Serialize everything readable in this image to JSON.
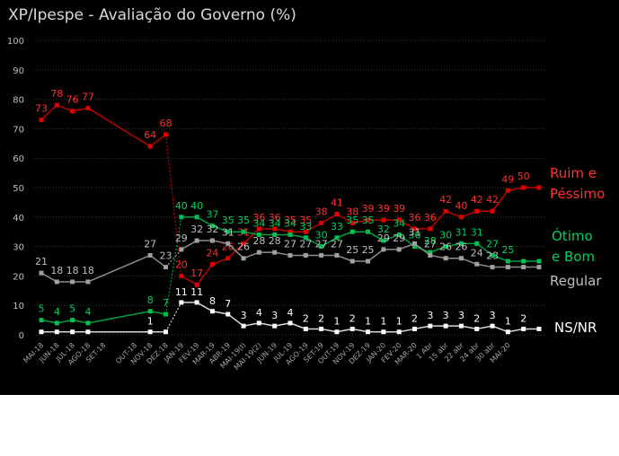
{
  "chart_data": {
    "type": "line",
    "title": "XP/Ipespe - Avaliação do Governo (%)",
    "ylim": [
      0,
      100
    ],
    "yticks": [
      "0",
      "10",
      "20",
      "30",
      "40",
      "50",
      "60",
      "70",
      "80",
      "90",
      "100"
    ],
    "grid": true,
    "categories": [
      "MAI-18",
      "JUN-18",
      "JUL-18",
      "AGO-18",
      "SET-18",
      "OUT-18",
      "NOV-18",
      "DEZ-18",
      "JAN-19",
      "FEV-19",
      "MAR-19",
      "ABR-19",
      "MAI-19(I)",
      "MAI-19(2)",
      "JUN-19",
      "JUL-19",
      "AGO-19",
      "SET-19",
      "OUT-19",
      "NOV-19",
      "DEZ-19",
      "JAN-20",
      "FEV-20",
      "MAR-20",
      "1 Abr",
      "15 abr",
      "22 abr",
      "24 abr",
      "30 abr",
      "MAI-20"
    ],
    "x_positions": [
      0,
      1,
      2,
      3,
      4,
      6,
      7,
      8,
      9,
      10,
      11,
      12,
      13,
      14,
      15,
      16,
      17,
      18,
      19,
      20,
      21,
      22,
      23,
      24,
      25,
      26,
      27,
      28,
      29,
      30
    ],
    "series": [
      {
        "name": "Ruim e Péssimo",
        "label_lines": [
          "Ruim e",
          "Péssimo"
        ],
        "color": "#ff0000",
        "line_color": "#c00000",
        "marker_color": "#e00000",
        "label_color": "#ff3030",
        "x": [
          0,
          1,
          2,
          3,
          7,
          8,
          9,
          10,
          11,
          12,
          13,
          14,
          15,
          16,
          17,
          18,
          19,
          20,
          21,
          22,
          23,
          24,
          25,
          26,
          27,
          28,
          29,
          30,
          31,
          32
        ],
        "values": [
          73,
          78,
          76,
          77,
          64,
          68,
          20,
          17,
          24,
          26,
          31,
          36,
          36,
          35,
          35,
          38,
          41,
          38,
          39,
          39,
          39,
          36,
          36,
          42,
          40,
          42,
          42,
          49,
          50,
          50
        ],
        "labels": [
          "73",
          "78",
          "76",
          "77",
          "64",
          "68",
          "20",
          "17",
          "24",
          "26",
          "31",
          "36",
          "36",
          "35",
          "35",
          "38",
          "41",
          "38",
          "39",
          "39",
          "39",
          "36",
          "36",
          "42",
          "40",
          "42",
          "42",
          "49",
          "50",
          ""
        ]
      },
      {
        "name": "Ótimo e Bom",
        "label_lines": [
          "Ótimo",
          "e Bom"
        ],
        "color": "#00b050",
        "line_color": "#00a040",
        "marker_color": "#00c050",
        "label_color": "#00d060",
        "x": [
          0,
          1,
          2,
          3,
          7,
          8,
          9,
          10,
          11,
          12,
          13,
          14,
          15,
          16,
          17,
          18,
          19,
          20,
          21,
          22,
          23,
          24,
          25,
          26,
          27,
          28,
          29,
          30,
          31,
          32
        ],
        "values": [
          5,
          4,
          5,
          4,
          8,
          7,
          40,
          40,
          37,
          35,
          35,
          34,
          34,
          34,
          33,
          30,
          33,
          35,
          35,
          32,
          34,
          30,
          28,
          30,
          31,
          31,
          27,
          25,
          25,
          25
        ],
        "labels": [
          "5",
          "4",
          "5",
          "4",
          "8",
          "7",
          "40",
          "40",
          "37",
          "35",
          "35",
          "34",
          "34",
          "34",
          "33",
          "30",
          "33",
          "35",
          "35",
          "32",
          "34",
          "30",
          "28",
          "30",
          "31",
          "31",
          "27",
          "25",
          "",
          ""
        ]
      },
      {
        "name": "Regular",
        "label_lines": [
          "Regular"
        ],
        "color": "#808080",
        "line_color": "#8c8c8c",
        "marker_color": "#a0a0a0",
        "label_color": "#bfbfbf",
        "x": [
          0,
          1,
          2,
          3,
          7,
          8,
          9,
          10,
          11,
          12,
          13,
          14,
          15,
          16,
          17,
          18,
          19,
          20,
          21,
          22,
          23,
          24,
          25,
          26,
          27,
          28,
          29,
          30,
          31,
          32
        ],
        "values": [
          21,
          18,
          18,
          18,
          27,
          23,
          29,
          32,
          32,
          31,
          26,
          28,
          28,
          27,
          27,
          27,
          27,
          25,
          25,
          29,
          29,
          31,
          27,
          26,
          26,
          24,
          23,
          23,
          23,
          23
        ],
        "labels": [
          "21",
          "18",
          "18",
          "18",
          "27",
          "23",
          "29",
          "32",
          "32",
          "31",
          "26",
          "28",
          "28",
          "27",
          "27",
          "27",
          "27",
          "25",
          "25",
          "29",
          "29",
          "31",
          "27",
          "26",
          "26",
          "24",
          "23",
          "",
          "",
          ""
        ]
      },
      {
        "name": "NS/NR",
        "label_lines": [
          "NS/NR"
        ],
        "color": "#ffffff",
        "line_color": "#d9d9d9",
        "marker_color": "#ffffff",
        "label_color": "#ffffff",
        "x": [
          0,
          1,
          2,
          3,
          7,
          8,
          9,
          10,
          11,
          12,
          13,
          14,
          15,
          16,
          17,
          18,
          19,
          20,
          21,
          22,
          23,
          24,
          25,
          26,
          27,
          28,
          29,
          30,
          31,
          32
        ],
        "values": [
          1,
          1,
          1,
          1,
          1,
          1,
          11,
          11,
          8,
          7,
          3,
          4,
          3,
          4,
          2,
          2,
          1,
          2,
          1,
          1,
          1,
          2,
          3,
          3,
          3,
          2,
          3,
          1,
          2,
          2
        ],
        "labels": [
          "",
          "",
          "",
          "",
          "1",
          "",
          "11",
          "11",
          "8",
          "7",
          "3",
          "4",
          "3",
          "4",
          "2",
          "2",
          "1",
          "2",
          "1",
          "1",
          "1",
          "2",
          "3",
          "3",
          "3",
          "2",
          "3",
          "1",
          "2",
          ""
        ]
      }
    ]
  }
}
